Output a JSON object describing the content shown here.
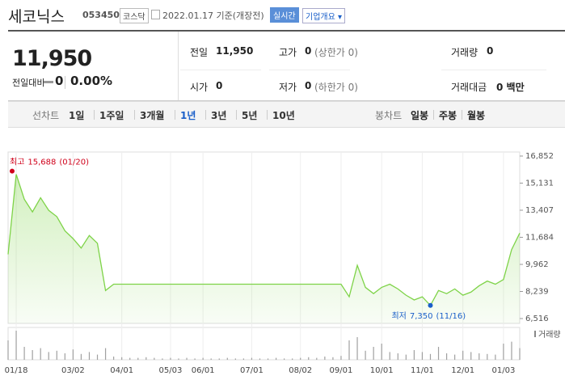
{
  "header": {
    "name": "세코닉스",
    "code": "053450",
    "market": "코스닥",
    "date": "2022.01.17 기준(개장전)",
    "realtime": "실시간",
    "company": "기업개요"
  },
  "quote": {
    "price": "11,950",
    "change_label": "전일대비",
    "change": "0",
    "change_rate": "0.00%",
    "rows": [
      [
        {
          "label": "전일",
          "value": "11,950"
        },
        {
          "label": "고가",
          "value": "0",
          "sub": "(상한가 0)"
        },
        {
          "label": "거래량",
          "value": "0"
        }
      ],
      [
        {
          "label": "시가",
          "value": "0"
        },
        {
          "label": "저가",
          "value": "0",
          "sub": "(하한가 0)"
        },
        {
          "label": "거래대금",
          "value": "0 백만"
        }
      ]
    ]
  },
  "toolbar": {
    "line_label": "선차트",
    "line_items": [
      "1일",
      "1주일",
      "3개월",
      "1년",
      "3년",
      "5년",
      "10년"
    ],
    "selected": "1년",
    "candle_label": "봉차트",
    "candle_items": [
      "일봉",
      "주봉",
      "월봉"
    ]
  },
  "chart_data": {
    "type": "line",
    "color": "#7ed348",
    "categories": [
      null,
      "01/18",
      null,
      null,
      null,
      null,
      null,
      null,
      "03/02",
      null,
      null,
      null,
      null,
      null,
      "04/01",
      null,
      null,
      null,
      null,
      null,
      "05/03",
      null,
      null,
      null,
      "06/01",
      null,
      null,
      null,
      null,
      null,
      "07/01",
      null,
      null,
      null,
      null,
      null,
      "08/02",
      null,
      null,
      null,
      null,
      "09/01",
      null,
      null,
      null,
      null,
      "10/01",
      null,
      null,
      null,
      null,
      "11/01",
      null,
      null,
      null,
      null,
      "12/01",
      null,
      null,
      null,
      null,
      "01/03",
      null,
      null
    ],
    "values": [
      10600,
      15688,
      14100,
      13300,
      14200,
      13400,
      13000,
      12100,
      11600,
      11000,
      11800,
      11300,
      8300,
      8700,
      8700,
      8700,
      8700,
      8700,
      8700,
      8700,
      8700,
      8700,
      8700,
      8700,
      8700,
      8700,
      8700,
      8700,
      8700,
      8700,
      8700,
      8700,
      8700,
      8700,
      8700,
      8700,
      8700,
      8700,
      8700,
      8700,
      8700,
      8700,
      7900,
      9900,
      8500,
      8100,
      8500,
      8700,
      8400,
      8000,
      7700,
      7900,
      7350,
      8300,
      8100,
      8400,
      8000,
      8200,
      8600,
      8900,
      8700,
      9000,
      10900,
      11950
    ],
    "ylim": [
      6516,
      16852
    ],
    "yticks": [
      {
        "value": 6516,
        "label": "6,516"
      },
      {
        "value": 8239,
        "label": "8,239"
      },
      {
        "value": 9962,
        "label": "9,962"
      },
      {
        "value": 11684,
        "label": "11,684"
      },
      {
        "value": 13407,
        "label": "13,407"
      },
      {
        "value": 15131,
        "label": "15,131"
      },
      {
        "value": 16852,
        "label": "16,852"
      }
    ],
    "annotations": [
      {
        "label": "최고",
        "value": 15688,
        "value_label": "15,688",
        "date": "(01/20)",
        "color": "#d0021b"
      },
      {
        "label": "최저",
        "value": 7350,
        "value_label": "7,350",
        "date": "(11/16)",
        "color": "#1a5fc9"
      }
    ],
    "volume": {
      "name": "거래량",
      "color": "#a0a0a0",
      "values": [
        30,
        45,
        20,
        15,
        18,
        12,
        14,
        10,
        16,
        9,
        12,
        8,
        18,
        5,
        4,
        3,
        3,
        4,
        3,
        2,
        3,
        2,
        3,
        2,
        3,
        2,
        2,
        3,
        2,
        2,
        3,
        2,
        2,
        3,
        2,
        2,
        3,
        4,
        3,
        5,
        4,
        6,
        30,
        35,
        14,
        20,
        25,
        12,
        10,
        8,
        15,
        12,
        9,
        20,
        10,
        8,
        14,
        12,
        10,
        9,
        8,
        25,
        28,
        18
      ]
    }
  }
}
